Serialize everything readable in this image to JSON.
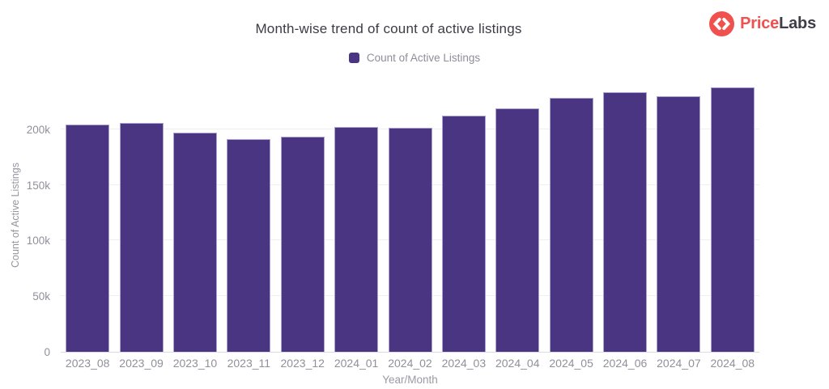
{
  "header": {
    "title": "Month-wise trend of count of active listings"
  },
  "logo": {
    "text_primary": "Price",
    "text_secondary": "Labs",
    "icon": "code-chevrons-icon",
    "colors": {
      "icon_bg": "#f0504e",
      "text_primary": "#f0504e",
      "text_secondary": "#3e3e48"
    }
  },
  "legend": {
    "label": "Count of Active Listings",
    "marker_color": "#493581"
  },
  "chart_data": {
    "type": "bar",
    "title": "Month-wise trend of count of active listings",
    "categories": [
      "2023_08",
      "2023_09",
      "2023_10",
      "2023_11",
      "2023_12",
      "2024_01",
      "2024_02",
      "2024_03",
      "2024_04",
      "2024_05",
      "2024_06",
      "2024_07",
      "2024_08"
    ],
    "series": [
      {
        "name": "Count of Active Listings",
        "values": [
          204000,
          206000,
          197000,
          191000,
          193000,
          202000,
          201000,
          212000,
          219000,
          228000,
          233000,
          230000,
          238000
        ]
      }
    ],
    "xlabel": "Year/Month",
    "ylabel": "Count of Active Listings",
    "ylim": [
      0,
      250000
    ],
    "yticks": [
      0,
      50000,
      100000,
      150000,
      200000
    ],
    "ytick_labels": [
      "0",
      "50k",
      "100k",
      "150k",
      "200k"
    ],
    "grid": "horizontal",
    "legend_position": "top-center",
    "bar_color": "#493581",
    "bar_border_color": "#aea2cf"
  }
}
